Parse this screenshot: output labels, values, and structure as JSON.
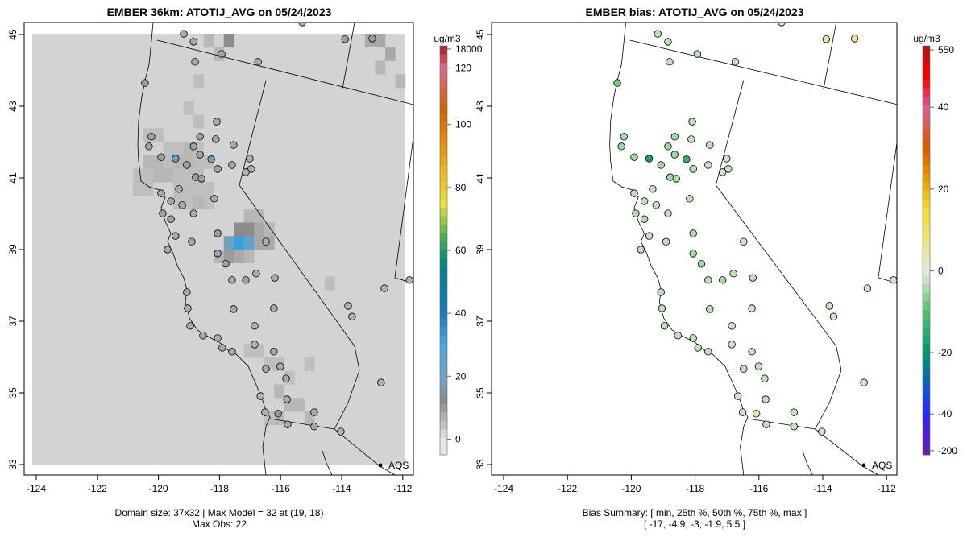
{
  "left": {
    "title": "EMBER 36km: ATOTIJ_AVG on 05/24/2023",
    "footer_line1": "Domain size: 37x32 | Max Model = 32 at (19, 18)",
    "footer_line2": "Max Obs: 22",
    "legend_unit": "ug/m3",
    "legend_ticks": [
      "18000",
      "120",
      "100",
      "80",
      "60",
      "40",
      "20",
      "0"
    ]
  },
  "right": {
    "title": "EMBER bias: ATOTIJ_AVG on 05/24/2023",
    "footer_line1": "Bias Summary: [ min, 25th %, 50th %, 75th %, max ]",
    "footer_line2": "[ -17,   -4.9,   -3,   -1.9,   5.5 ]",
    "legend_unit": "ug/m3",
    "legend_ticks": [
      "550",
      "40",
      "20",
      "0",
      "-20",
      "-40",
      "-200"
    ]
  },
  "aqs_label": "AQS",
  "chart_data": {
    "type": "scatter",
    "x_ticks": [
      "-124",
      "-122",
      "-120",
      "-118",
      "-116",
      "-114",
      "-112"
    ],
    "y_ticks": [
      "33",
      "35",
      "37",
      "39",
      "41",
      "43",
      "45"
    ],
    "xlim": [
      -124.3,
      -111.8
    ],
    "ylim": [
      32.7,
      45.3
    ],
    "grid_size": [
      37,
      32
    ],
    "model_cells": [
      [
        19,
        0,
        12
      ],
      [
        17,
        0,
        6
      ],
      [
        18,
        1,
        6
      ],
      [
        33,
        0,
        8
      ],
      [
        34,
        0,
        8
      ],
      [
        35,
        1,
        8
      ],
      [
        34,
        2,
        6
      ],
      [
        36,
        3,
        6
      ],
      [
        16,
        3,
        5
      ],
      [
        15,
        5,
        5
      ],
      [
        16,
        6,
        5
      ],
      [
        11,
        7,
        5
      ],
      [
        12,
        7,
        5
      ],
      [
        13,
        8,
        5
      ],
      [
        14,
        8,
        5
      ],
      [
        15,
        8,
        6
      ],
      [
        16,
        8,
        5
      ],
      [
        11,
        9,
        6
      ],
      [
        12,
        9,
        6
      ],
      [
        13,
        9,
        5
      ],
      [
        14,
        9,
        6
      ],
      [
        15,
        9,
        6
      ],
      [
        16,
        9,
        5
      ],
      [
        17,
        9,
        5
      ],
      [
        11,
        10,
        5
      ],
      [
        12,
        10,
        6
      ],
      [
        13,
        10,
        6
      ],
      [
        14,
        10,
        5
      ],
      [
        15,
        10,
        5
      ],
      [
        16,
        10,
        5
      ],
      [
        10,
        10,
        5
      ],
      [
        10,
        11,
        5
      ],
      [
        11,
        11,
        5
      ],
      [
        14,
        11,
        5
      ],
      [
        15,
        11,
        5
      ],
      [
        16,
        11,
        5
      ],
      [
        17,
        11,
        5
      ],
      [
        14,
        12,
        5
      ],
      [
        15,
        12,
        5
      ],
      [
        16,
        12,
        6
      ],
      [
        17,
        12,
        5
      ],
      [
        21,
        13,
        6
      ],
      [
        22,
        13,
        6
      ],
      [
        20,
        14,
        12
      ],
      [
        21,
        14,
        12
      ],
      [
        22,
        14,
        8
      ],
      [
        23,
        14,
        6
      ],
      [
        19,
        15,
        20
      ],
      [
        20,
        15,
        32
      ],
      [
        21,
        15,
        25
      ],
      [
        22,
        15,
        8
      ],
      [
        23,
        15,
        8
      ],
      [
        18,
        16,
        6
      ],
      [
        19,
        16,
        10
      ],
      [
        20,
        16,
        8
      ],
      [
        21,
        16,
        6
      ],
      [
        29,
        18,
        5
      ],
      [
        21,
        23,
        5
      ],
      [
        22,
        23,
        5
      ],
      [
        24,
        24,
        5
      ],
      [
        27,
        24,
        5
      ],
      [
        23,
        24,
        5
      ],
      [
        25,
        25,
        5
      ],
      [
        24,
        26,
        6
      ],
      [
        25,
        27,
        6
      ],
      [
        26,
        27,
        6
      ],
      [
        27,
        28,
        6
      ],
      [
        24,
        28,
        6
      ],
      [
        23,
        28,
        5
      ]
    ],
    "stations": [
      [
        -119.17,
        45.02,
        8,
        -3
      ],
      [
        -118.85,
        44.8,
        8,
        -3
      ],
      [
        -117.93,
        44.46,
        8,
        -3
      ],
      [
        -116.74,
        44.24,
        8,
        -3
      ],
      [
        -118.8,
        44.24,
        8,
        -3
      ],
      [
        -120.44,
        43.65,
        9,
        -8
      ],
      [
        -118.09,
        42.57,
        8,
        -3
      ],
      [
        -120.23,
        42.15,
        9,
        -5
      ],
      [
        -118.64,
        42.15,
        9,
        -5
      ],
      [
        -120.31,
        41.88,
        9,
        -5
      ],
      [
        -118.85,
        41.88,
        9,
        -5
      ],
      [
        -118.12,
        42.08,
        8,
        -3
      ],
      [
        -117.54,
        41.92,
        8,
        -3
      ],
      [
        -119.44,
        41.54,
        22,
        -17
      ],
      [
        -118.64,
        41.65,
        9,
        -5
      ],
      [
        -118.27,
        41.52,
        18,
        -14
      ],
      [
        -119.07,
        41.36,
        9,
        -5
      ],
      [
        -119.91,
        41.58,
        9,
        -5
      ],
      [
        -118.06,
        41.25,
        8,
        -3
      ],
      [
        -117.59,
        41.36,
        8,
        -1.9
      ],
      [
        -117.01,
        41.54,
        7,
        -1.9
      ],
      [
        -116.96,
        41.25,
        7,
        -1.9
      ],
      [
        -117.14,
        41.16,
        7,
        -1.9
      ],
      [
        -118.78,
        41.02,
        9,
        -5
      ],
      [
        -118.59,
        40.98,
        9,
        -4
      ],
      [
        -119.33,
        40.69,
        8,
        -3
      ],
      [
        -119.91,
        40.57,
        8,
        -3
      ],
      [
        -119.59,
        40.35,
        8,
        -3
      ],
      [
        -119.22,
        40.24,
        8,
        -3
      ],
      [
        -118.17,
        40.42,
        8,
        -3
      ],
      [
        -119.86,
        40.01,
        9,
        -4
      ],
      [
        -119.59,
        39.85,
        9,
        -4
      ],
      [
        -118.85,
        40.01,
        8,
        -3
      ],
      [
        -118.06,
        39.45,
        9,
        -4
      ],
      [
        -118.91,
        39.22,
        8,
        -3
      ],
      [
        -119.44,
        39.38,
        8,
        -3
      ],
      [
        -118.06,
        38.89,
        9,
        -5
      ],
      [
        -117.8,
        38.6,
        9,
        -5
      ],
      [
        -117.59,
        38.15,
        8,
        -3
      ],
      [
        -117.14,
        38.15,
        9,
        -5
      ],
      [
        -116.8,
        38.33,
        8,
        -3
      ],
      [
        -116.48,
        39.22,
        7,
        -1.9
      ],
      [
        -116.19,
        38.21,
        8,
        -3
      ],
      [
        -119.7,
        39.0,
        8,
        -3
      ],
      [
        -119.07,
        37.81,
        8,
        -3
      ],
      [
        -119.04,
        37.36,
        8,
        -3
      ],
      [
        -117.54,
        37.34,
        8,
        -3
      ],
      [
        -116.22,
        37.36,
        7,
        -1.9
      ],
      [
        -118.96,
        36.87,
        8,
        -3
      ],
      [
        -118.54,
        36.6,
        8,
        -3
      ],
      [
        -118.06,
        36.53,
        8,
        -3
      ],
      [
        -117.59,
        36.15,
        8,
        -3
      ],
      [
        -116.85,
        36.87,
        7,
        -1.9
      ],
      [
        -116.85,
        36.35,
        7,
        -1.9
      ],
      [
        -117.91,
        36.26,
        8,
        -3
      ],
      [
        -116.22,
        36.15,
        8,
        -3
      ],
      [
        -116.01,
        35.74,
        8,
        -3
      ],
      [
        -116.48,
        35.67,
        8,
        -3
      ],
      [
        -115.82,
        35.4,
        8,
        -3
      ],
      [
        -115.79,
        34.82,
        8,
        -3
      ],
      [
        -116.66,
        34.91,
        7,
        -1.9
      ],
      [
        -116.51,
        34.46,
        7,
        -1.9
      ],
      [
        -116.08,
        34.42,
        10,
        3
      ],
      [
        -115.77,
        34.12,
        8,
        -3
      ],
      [
        -114.9,
        34.06,
        8,
        -3
      ],
      [
        -114.9,
        34.46,
        8,
        -3
      ],
      [
        -114.03,
        33.92,
        7,
        -1.9
      ],
      [
        -112.71,
        35.29,
        7,
        -1.9
      ],
      [
        -111.78,
        38.15,
        7,
        -1.9
      ],
      [
        -112.6,
        37.92,
        7,
        -1.9
      ],
      [
        -113.66,
        37.13,
        7,
        -1.9
      ],
      [
        -113.79,
        37.43,
        7,
        -1.9
      ],
      [
        -113.89,
        44.87,
        9,
        4
      ],
      [
        -113.0,
        44.89,
        10,
        5.5
      ],
      [
        -115.29,
        45.34,
        7,
        -1.9
      ]
    ]
  }
}
